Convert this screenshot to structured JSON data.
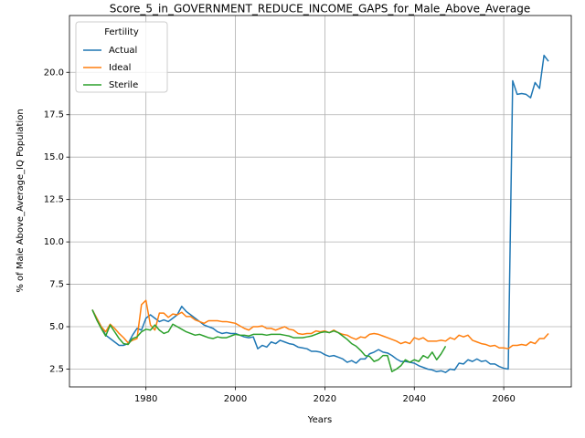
{
  "chart_data": {
    "type": "line",
    "title": "Score_5_in_GOVERNMENT_REDUCE_INCOME_GAPS_for_Male_Above_Average",
    "xlabel": "Years",
    "ylabel": "% of Male Above_Average_IQ Population",
    "legend_title": "Fertility",
    "legend_position": "upper left",
    "grid": true,
    "x": [
      1968,
      1969,
      1970,
      1971,
      1972,
      1973,
      1974,
      1975,
      1976,
      1977,
      1978,
      1979,
      1980,
      1981,
      1982,
      1983,
      1984,
      1985,
      1986,
      1987,
      1988,
      1989,
      1990,
      1991,
      1992,
      1993,
      1994,
      1995,
      1996,
      1997,
      1998,
      1999,
      2000,
      2001,
      2002,
      2003,
      2004,
      2005,
      2006,
      2007,
      2008,
      2009,
      2010,
      2011,
      2012,
      2013,
      2014,
      2015,
      2016,
      2017,
      2018,
      2019,
      2020,
      2021,
      2022,
      2023,
      2024,
      2025,
      2026,
      2027,
      2028,
      2029,
      2030,
      2031,
      2032,
      2033,
      2034,
      2035,
      2036,
      2037,
      2038,
      2039,
      2040,
      2041,
      2042,
      2043,
      2044,
      2045,
      2046,
      2047,
      2048,
      2049,
      2050,
      2051,
      2052,
      2053,
      2054,
      2055,
      2056,
      2057,
      2058,
      2059,
      2060,
      2061,
      2062,
      2063,
      2064,
      2065,
      2066,
      2067,
      2068,
      2069,
      2070
    ],
    "series": [
      {
        "name": "Actual",
        "color": "#1f77b4",
        "values": [
          6.0,
          5.5,
          5.0,
          4.5,
          4.3,
          4.1,
          3.9,
          3.9,
          4.0,
          4.5,
          4.9,
          4.8,
          5.5,
          5.7,
          5.5,
          5.3,
          5.4,
          5.3,
          5.5,
          5.7,
          6.2,
          5.9,
          5.7,
          5.5,
          5.3,
          5.1,
          5.0,
          4.9,
          4.7,
          4.6,
          4.65,
          4.6,
          4.6,
          4.5,
          4.4,
          4.35,
          4.4,
          3.7,
          3.9,
          3.8,
          4.1,
          4.0,
          4.2,
          4.1,
          4.0,
          3.95,
          3.8,
          3.75,
          3.7,
          3.55,
          3.55,
          3.5,
          3.35,
          3.25,
          3.3,
          3.2,
          3.1,
          2.9,
          3.0,
          2.85,
          3.1,
          3.1,
          3.4,
          3.5,
          3.65,
          3.5,
          3.45,
          3.3,
          3.1,
          2.95,
          2.95,
          2.9,
          2.85,
          2.7,
          2.6,
          2.5,
          2.45,
          2.35,
          2.4,
          2.3,
          2.5,
          2.45,
          2.85,
          2.8,
          3.05,
          2.95,
          3.1,
          2.95,
          3.0,
          2.8,
          2.8,
          2.65,
          2.55,
          2.5,
          19.5,
          18.7,
          18.75,
          18.7,
          18.5,
          19.4,
          19.05,
          21.0,
          20.65
        ]
      },
      {
        "name": "Ideal",
        "color": "#ff7f0e",
        "values": [
          6.0,
          5.5,
          5.0,
          4.7,
          5.15,
          4.9,
          4.6,
          4.35,
          4.05,
          4.2,
          4.3,
          6.3,
          6.55,
          5.1,
          4.8,
          5.8,
          5.8,
          5.55,
          5.75,
          5.7,
          5.85,
          5.6,
          5.6,
          5.4,
          5.3,
          5.2,
          5.35,
          5.35,
          5.35,
          5.3,
          5.3,
          5.25,
          5.2,
          5.05,
          4.9,
          4.8,
          5.0,
          5.0,
          5.05,
          4.9,
          4.9,
          4.8,
          4.9,
          5.0,
          4.85,
          4.8,
          4.6,
          4.55,
          4.6,
          4.6,
          4.75,
          4.7,
          4.75,
          4.65,
          4.8,
          4.65,
          4.55,
          4.5,
          4.35,
          4.25,
          4.4,
          4.35,
          4.55,
          4.6,
          4.55,
          4.45,
          4.35,
          4.25,
          4.15,
          4.0,
          4.1,
          4.0,
          4.35,
          4.25,
          4.35,
          4.15,
          4.15,
          4.15,
          4.2,
          4.15,
          4.35,
          4.25,
          4.5,
          4.4,
          4.5,
          4.2,
          4.1,
          4.0,
          3.95,
          3.85,
          3.9,
          3.75,
          3.75,
          3.7,
          3.9,
          3.9,
          3.95,
          3.9,
          4.1,
          4.0,
          4.3,
          4.3,
          4.6
        ]
      },
      {
        "name": "Sterile",
        "color": "#2ca02c",
        "values": [
          6.0,
          5.4,
          4.9,
          4.45,
          5.1,
          4.7,
          4.3,
          4.0,
          3.95,
          4.3,
          4.4,
          4.7,
          4.85,
          4.8,
          5.1,
          4.8,
          4.6,
          4.7,
          5.15,
          5.0,
          4.85,
          4.7,
          4.6,
          4.5,
          4.55,
          4.45,
          4.35,
          4.3,
          4.4,
          4.35,
          4.35,
          4.45,
          4.55,
          4.5,
          4.5,
          4.45,
          4.55,
          4.55,
          4.55,
          4.5,
          4.55,
          4.55,
          4.55,
          4.5,
          4.45,
          4.35,
          4.35,
          4.35,
          4.4,
          4.45,
          4.55,
          4.65,
          4.7,
          4.65,
          4.75,
          4.65,
          4.45,
          4.25,
          4.0,
          3.85,
          3.6,
          3.3,
          3.25,
          2.95,
          3.05,
          3.3,
          3.3,
          2.35,
          2.5,
          2.7,
          3.05,
          2.9,
          3.05,
          2.95,
          3.3,
          3.15,
          3.5,
          3.05,
          3.4,
          3.85,
          null,
          null,
          null,
          null,
          null,
          null,
          null,
          null,
          null,
          null,
          null,
          null,
          null,
          null,
          null,
          null,
          null,
          null,
          null,
          null,
          null,
          null,
          null
        ]
      }
    ],
    "xlim": [
      1962.9,
      2075.1
    ],
    "xticks": [
      1980,
      2000,
      2020,
      2040,
      2060
    ],
    "ylim": [
      1.45,
      23.35
    ],
    "yticks": [
      {
        "value": 2.5,
        "label": "2.5"
      },
      {
        "value": 5.0,
        "label": "5.0"
      },
      {
        "value": 7.5,
        "label": "7.5"
      },
      {
        "value": 10.0,
        "label": "10.0"
      },
      {
        "value": 12.5,
        "label": "12.5"
      },
      {
        "value": 15.0,
        "label": "15.0"
      },
      {
        "value": 17.5,
        "label": "17.5"
      },
      {
        "value": 20.0,
        "label": "20.0"
      }
    ]
  }
}
